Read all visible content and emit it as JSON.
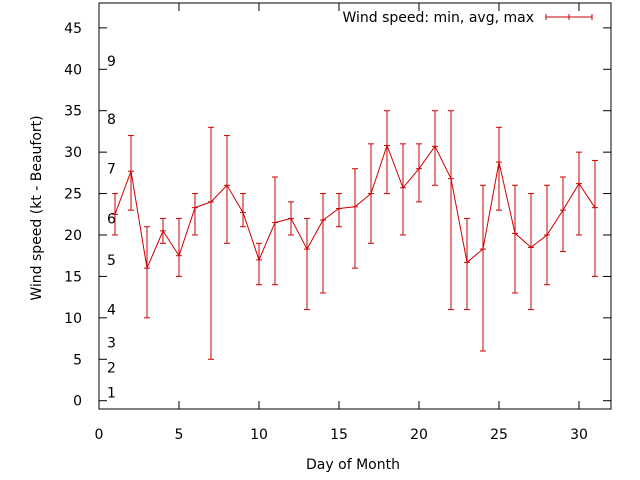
{
  "chart_data": {
    "type": "line",
    "xlabel": "Day of Month",
    "ylabel": "Wind speed (kt - Beaufort)",
    "xlim": [
      0,
      32
    ],
    "ylim": [
      -1,
      48
    ],
    "xticks": [
      0,
      5,
      10,
      15,
      20,
      25,
      30
    ],
    "yticks": [
      0,
      5,
      10,
      15,
      20,
      25,
      30,
      35,
      40,
      45
    ],
    "grid": false,
    "legend_position": "top-right",
    "beaufort_labels": [
      {
        "label": "1",
        "y": 1
      },
      {
        "label": "2",
        "y": 4
      },
      {
        "label": "3",
        "y": 7
      },
      {
        "label": "4",
        "y": 11
      },
      {
        "label": "5",
        "y": 17
      },
      {
        "label": "6",
        "y": 22
      },
      {
        "label": "7",
        "y": 28
      },
      {
        "label": "8",
        "y": 34
      },
      {
        "label": "9",
        "y": 41
      }
    ],
    "series": [
      {
        "name": "Wind speed: min, avg, max",
        "color": "#cc0000",
        "x": [
          1,
          2,
          3,
          4,
          5,
          6,
          7,
          8,
          9,
          10,
          11,
          12,
          13,
          14,
          15,
          16,
          17,
          18,
          19,
          20,
          21,
          22,
          23,
          24,
          25,
          26,
          27,
          28,
          29,
          30,
          31
        ],
        "avg": [
          22.5,
          27.7,
          16.0,
          20.5,
          17.5,
          23.3,
          24.0,
          26.0,
          22.7,
          17.0,
          21.5,
          22.0,
          18.3,
          21.8,
          23.2,
          23.4,
          25.0,
          30.8,
          25.7,
          28.0,
          30.7,
          26.8,
          16.7,
          18.3,
          28.8,
          20.2,
          18.5,
          20.0,
          23.0,
          26.2,
          23.3
        ],
        "min": [
          20,
          23,
          10,
          19,
          15,
          20,
          5,
          19,
          21,
          14,
          14,
          20,
          11,
          13,
          21,
          16,
          19,
          25,
          20,
          24,
          26,
          11,
          11,
          6,
          23,
          13,
          11,
          14,
          18,
          20,
          15
        ],
        "max": [
          25,
          32,
          21,
          22,
          22,
          25,
          33,
          32,
          25,
          19,
          27,
          24,
          22,
          25,
          25,
          28,
          31,
          35,
          31,
          31,
          35,
          35,
          22,
          26,
          33,
          26,
          25,
          26,
          27,
          30,
          29
        ]
      }
    ]
  }
}
